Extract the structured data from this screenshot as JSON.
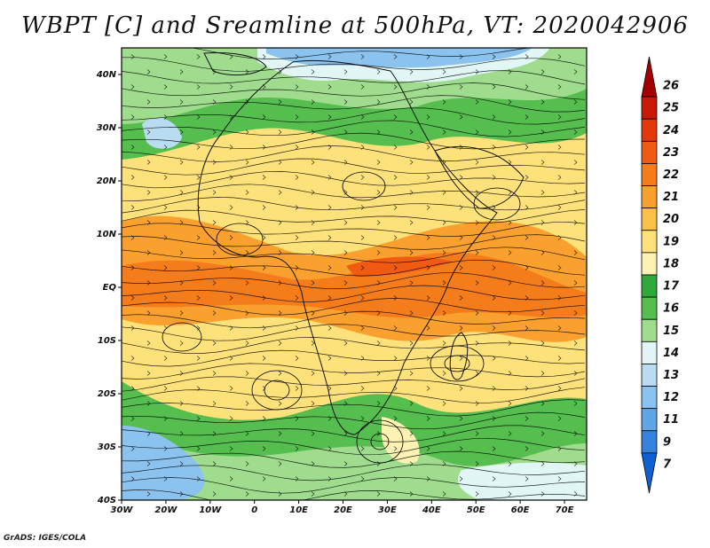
{
  "title": "WBPT [C] and Sreamline at 500hPa, VT: 2020042906",
  "footer": "GrADS: IGES/COLA",
  "map": {
    "lat_labels": [
      "40N",
      "30N",
      "20N",
      "10N",
      "EQ",
      "10S",
      "20S",
      "30S",
      "40S"
    ],
    "lon_labels": [
      "30W",
      "20W",
      "10W",
      "0",
      "10E",
      "20E",
      "30E",
      "40E",
      "50E",
      "60E",
      "70E"
    ],
    "lat_range": [
      -40,
      45
    ],
    "lon_range": [
      -30,
      75
    ]
  },
  "colorbar": {
    "levels": [
      "26",
      "25",
      "24",
      "23",
      "22",
      "21",
      "20",
      "19",
      "18",
      "17",
      "16",
      "15",
      "14",
      "13",
      "12",
      "11",
      "9",
      "7"
    ],
    "colors": [
      "#a50000",
      "#c81a06",
      "#e4380c",
      "#f05a12",
      "#f57c1a",
      "#f9a02e",
      "#fbc24a",
      "#fde27c",
      "#fdf2b4",
      "#2fa93c",
      "#55be4f",
      "#9fdc8e",
      "#e2f6f6",
      "#b9dcf3",
      "#8cc3ee",
      "#5ea6e6",
      "#3583dc",
      "#1060d2"
    ]
  }
}
